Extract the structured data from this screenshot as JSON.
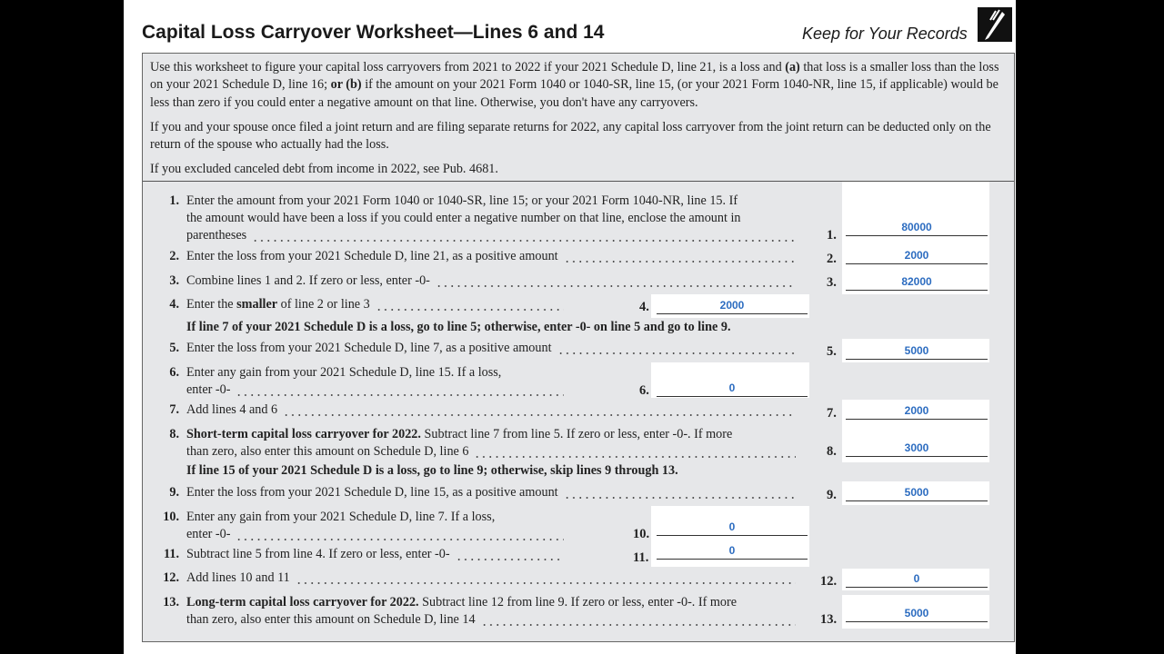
{
  "header": {
    "title": "Capital Loss Carryover Worksheet—Lines 6 and 14",
    "keep": "Keep for Your Records"
  },
  "intro": {
    "p1a": "Use this worksheet to figure your capital loss carryovers from 2021 to 2022 if your 2021 Schedule D, line 21, is a loss and ",
    "p1b": "(a)",
    "p1c": " that loss is a smaller loss than the loss on your 2021 Schedule D, line 16; ",
    "p1d": "or (b)",
    "p1e": " if the amount on your 2021 Form 1040 or 1040-SR, line 15, (or your 2021 Form 1040-NR, line 15, if applicable) would be less than zero if you could enter a negative amount on that line. Otherwise, you don't have any carryovers.",
    "p2": "If you and your spouse once filed a joint return and are filing separate returns for 2022, any capital loss carryover from the joint return can be deducted only on the return of the spouse who actually had the loss.",
    "p3": "If you excluded canceled debt from income in 2022, see Pub. 4681."
  },
  "lines": {
    "l1": {
      "num": "1.",
      "t1": "Enter the amount from your 2021 Form 1040 or 1040-SR, line 15; or your 2021 Form 1040-NR, line 15. If",
      "t2": "the amount would have been a loss if you could enter a negative number on that line, enclose the amount in",
      "t3": "parentheses",
      "value": "80000"
    },
    "l2": {
      "num": "2.",
      "t1": "Enter the loss from your 2021 Schedule D, line 21, as a positive amount",
      "value": "2000"
    },
    "l3": {
      "num": "3.",
      "t1": "Combine lines 1 and 2. If zero or less, enter -0-",
      "value": "82000"
    },
    "l4": {
      "num": "4.",
      "t1": "Enter the ",
      "b": "smaller",
      "t2": " of line 2 or line 3",
      "value": "2000"
    },
    "note1": "If line 7 of your 2021 Schedule D is a loss, go to line 5; otherwise, enter -0- on line 5 and go to line 9.",
    "l5": {
      "num": "5.",
      "t1": "Enter the loss from your 2021 Schedule D, line 7, as a positive amount",
      "value": "5000"
    },
    "l6": {
      "num": "6.",
      "t1": "Enter any gain from your 2021 Schedule D, line 15. If a loss,",
      "t2": "enter -0-",
      "value": "0"
    },
    "l7": {
      "num": "7.",
      "t1": "Add lines 4 and 6",
      "value": "2000"
    },
    "l8": {
      "num": "8.",
      "b": "Short-term capital loss carryover for 2022.",
      "t1": " Subtract line 7 from line 5. If zero or less, enter -0-. If more",
      "t2": "than zero, also enter this amount on Schedule D, line 6",
      "value": "3000"
    },
    "note2": "If line 15 of your 2021 Schedule D is a loss, go to line 9; otherwise, skip lines 9 through 13.",
    "l9": {
      "num": "9.",
      "t1": "Enter the loss from your 2021 Schedule D, line 15, as a positive amount",
      "value": "5000"
    },
    "l10": {
      "num": "10.",
      "t1": "Enter any gain from your 2021 Schedule D, line 7. If a loss,",
      "t2": "enter -0-",
      "value": "0"
    },
    "l11": {
      "num": "11.",
      "t1": "Subtract line 5 from line 4. If zero or less, enter -0-",
      "value": "0"
    },
    "l12": {
      "num": "12.",
      "t1": "Add lines 10 and 11",
      "value": "0"
    },
    "l13": {
      "num": "13.",
      "b": "Long-term capital loss carryover for 2022.",
      "t1": " Subtract line 12 from line 9. If zero or less, enter -0-. If more",
      "t2": "than zero, also enter this amount on Schedule D, line 14",
      "value": "5000"
    }
  },
  "colors": {
    "value_text": "#2c6cc0",
    "panel_bg": "#e6e7e9"
  }
}
